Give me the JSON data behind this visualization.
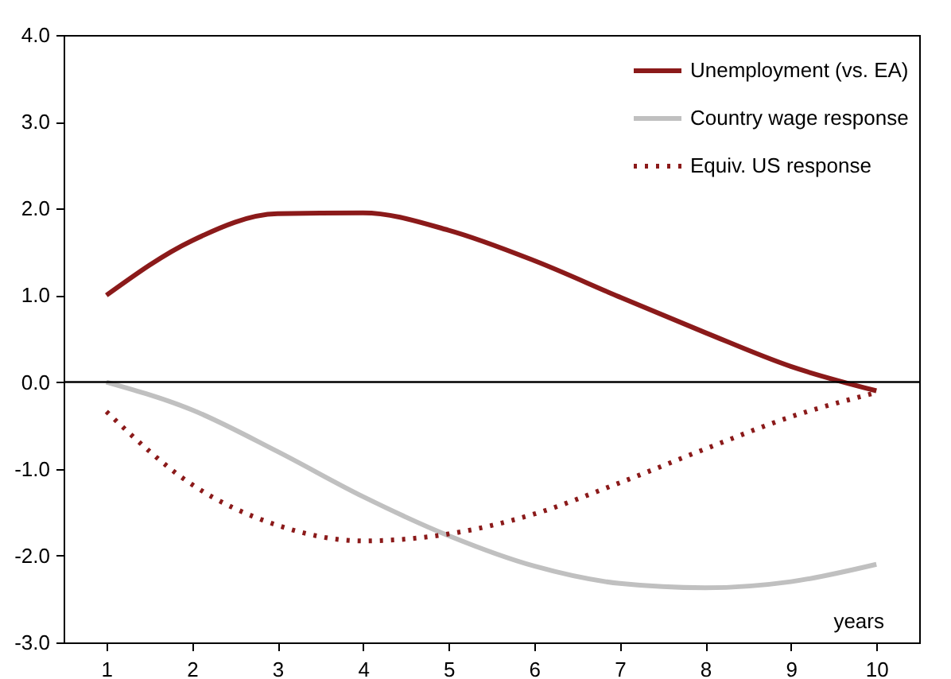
{
  "chart_data": {
    "type": "line",
    "categories": [
      "1",
      "2",
      "3",
      "4",
      "5",
      "6",
      "7",
      "8",
      "9",
      "10"
    ],
    "series": [
      {
        "name": "Unemployment (vs. EA)",
        "color": "#8b1a1a",
        "line_style": "solid",
        "values": [
          1.0,
          1.63,
          1.94,
          1.95,
          1.75,
          1.4,
          0.98,
          0.57,
          0.18,
          -0.1
        ]
      },
      {
        "name": "Country wage response",
        "color": "#c0c0c0",
        "line_style": "solid",
        "values": [
          0.0,
          -0.32,
          -0.8,
          -1.32,
          -1.77,
          -2.12,
          -2.32,
          -2.37,
          -2.3,
          -2.1
        ]
      },
      {
        "name": "Equiv. US response",
        "color": "#8b1a1a",
        "line_style": "dotted",
        "values": [
          -0.34,
          -1.18,
          -1.65,
          -1.83,
          -1.75,
          -1.52,
          -1.16,
          -0.77,
          -0.4,
          -0.12
        ]
      }
    ],
    "ylim": [
      -3,
      4
    ],
    "yticks": [
      {
        "value": -3,
        "label": "-3.0"
      },
      {
        "value": -2,
        "label": "-2.0"
      },
      {
        "value": -1,
        "label": "-1.0"
      },
      {
        "value": 0,
        "label": "0.0"
      },
      {
        "value": 1,
        "label": "1.0"
      },
      {
        "value": 2,
        "label": "2.0"
      },
      {
        "value": 3,
        "label": "3.0"
      },
      {
        "value": 4,
        "label": "4.0"
      }
    ],
    "ref_lines": [
      {
        "axis": "y",
        "value": 0,
        "color": "#000000"
      }
    ],
    "annotations": [
      "years"
    ],
    "legend": "top right",
    "grid": false,
    "marker": "none"
  }
}
